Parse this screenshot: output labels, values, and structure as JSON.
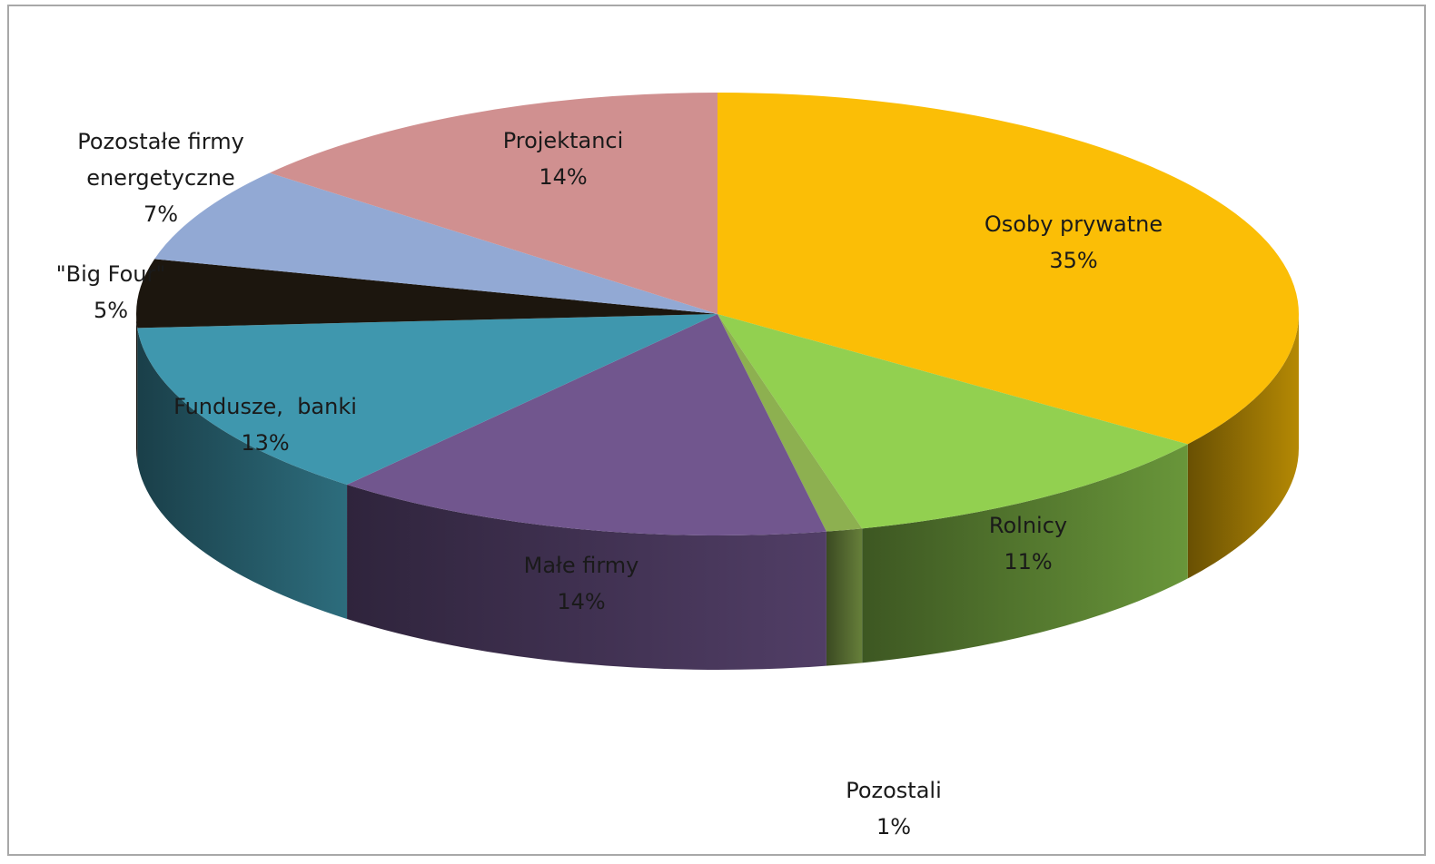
{
  "chart_data": {
    "type": "pie",
    "style": "3d-exploded-depth",
    "title": "",
    "slices": [
      {
        "label": "Osoby prywatne",
        "label_lines": [
          "Osoby prywatne"
        ],
        "value": 35,
        "pct_text": "35%",
        "color": "#FBBE06"
      },
      {
        "label": "Rolnicy",
        "label_lines": [
          "Rolnicy"
        ],
        "value": 11,
        "pct_text": "11%",
        "color": "#92D050"
      },
      {
        "label": "Pozostali",
        "label_lines": [
          "Pozostali"
        ],
        "value": 1,
        "pct_text": "1%",
        "color": "#8DB050"
      },
      {
        "label": "Małe firmy",
        "label_lines": [
          "Małe firmy"
        ],
        "value": 14,
        "pct_text": "14%",
        "color": "#71568E"
      },
      {
        "label": "Fundusze, banki",
        "label_lines": [
          "Fundusze,  banki"
        ],
        "value": 13,
        "pct_text": "13%",
        "color": "#3F97AE"
      },
      {
        "label": "\"Big Four\"",
        "label_lines": [
          "\"Big Four\""
        ],
        "value": 5,
        "pct_text": "5%",
        "color": "#1C160E"
      },
      {
        "label": "Pozostałe firmy energetyczne",
        "label_lines": [
          "Pozostałe firmy",
          "energetyczne"
        ],
        "value": 7,
        "pct_text": "7%",
        "color": "#92A9D4"
      },
      {
        "label": "Projektanci",
        "label_lines": [
          "Projektanci"
        ],
        "value": 14,
        "pct_text": "14%",
        "color": "#D09090"
      }
    ]
  }
}
